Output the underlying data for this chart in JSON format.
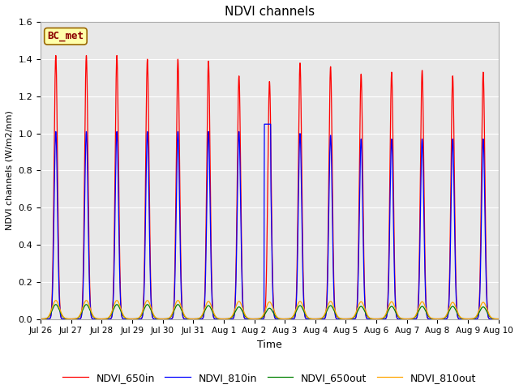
{
  "title": "NDVI channels",
  "xlabel": "Time",
  "ylabel": "NDVI channels (W/m2/nm)",
  "ylim": [
    0,
    1.6
  ],
  "background_color": "#e8e8e8",
  "legend_entries": [
    "NDVI_650in",
    "NDVI_810in",
    "NDVI_650out",
    "NDVI_810out"
  ],
  "line_colors": [
    "red",
    "blue",
    "green",
    "orange"
  ],
  "annotation_text": "BC_met",
  "annotation_color": "#8B0000",
  "annotation_bg": "#FFFFAA",
  "days": [
    {
      "label": "Jul 26",
      "peak_650in": 1.42,
      "peak_810in": 1.01,
      "peak_650out": 0.078,
      "peak_810out": 0.1,
      "noisy_810": false
    },
    {
      "label": "Jul 27",
      "peak_650in": 1.42,
      "peak_810in": 1.01,
      "peak_650out": 0.078,
      "peak_810out": 0.1,
      "noisy_810": false
    },
    {
      "label": "Jul 28",
      "peak_650in": 1.42,
      "peak_810in": 1.01,
      "peak_650out": 0.078,
      "peak_810out": 0.1,
      "noisy_810": false
    },
    {
      "label": "Jul 29",
      "peak_650in": 1.4,
      "peak_810in": 1.01,
      "peak_650out": 0.078,
      "peak_810out": 0.1,
      "noisy_810": false
    },
    {
      "label": "Jul 30",
      "peak_650in": 1.4,
      "peak_810in": 1.01,
      "peak_650out": 0.078,
      "peak_810out": 0.1,
      "noisy_810": false
    },
    {
      "label": "Jul 31",
      "peak_650in": 1.39,
      "peak_810in": 1.01,
      "peak_650out": 0.072,
      "peak_810out": 0.095,
      "noisy_810": false
    },
    {
      "label": "Aug 1",
      "peak_650in": 1.31,
      "peak_810in": 1.01,
      "peak_650out": 0.065,
      "peak_810out": 0.095,
      "noisy_810": false
    },
    {
      "label": "Aug 2",
      "peak_650in": 1.28,
      "peak_810in": 1.0,
      "peak_650out": 0.058,
      "peak_810out": 0.092,
      "noisy_810": true
    },
    {
      "label": "Aug 3",
      "peak_650in": 1.38,
      "peak_810in": 1.0,
      "peak_650out": 0.072,
      "peak_810out": 0.095,
      "noisy_810": false
    },
    {
      "label": "Aug 4",
      "peak_650in": 1.36,
      "peak_810in": 0.99,
      "peak_650out": 0.072,
      "peak_810out": 0.095,
      "noisy_810": false
    },
    {
      "label": "Aug 5",
      "peak_650in": 1.32,
      "peak_810in": 0.97,
      "peak_650out": 0.068,
      "peak_810out": 0.093,
      "noisy_810": false
    },
    {
      "label": "Aug 6",
      "peak_650in": 1.33,
      "peak_810in": 0.97,
      "peak_650out": 0.068,
      "peak_810out": 0.093,
      "noisy_810": false
    },
    {
      "label": "Aug 7",
      "peak_650in": 1.34,
      "peak_810in": 0.97,
      "peak_650out": 0.068,
      "peak_810out": 0.093,
      "noisy_810": false
    },
    {
      "label": "Aug 8",
      "peak_650in": 1.31,
      "peak_810in": 0.97,
      "peak_650out": 0.068,
      "peak_810out": 0.09,
      "noisy_810": false
    },
    {
      "label": "Aug 9",
      "peak_650in": 1.33,
      "peak_810in": 0.97,
      "peak_650out": 0.065,
      "peak_810out": 0.09,
      "noisy_810": false
    }
  ],
  "xtick_labels": [
    "Jul 26",
    "Jul 27",
    "Jul 28",
    "Jul 29",
    "Jul 30",
    "Jul 31",
    "Aug 1",
    "Aug 2",
    "Aug 3",
    "Aug 4",
    "Aug 5",
    "Aug 6",
    "Aug 7",
    "Aug 8",
    "Aug 9",
    "Aug 10"
  ]
}
